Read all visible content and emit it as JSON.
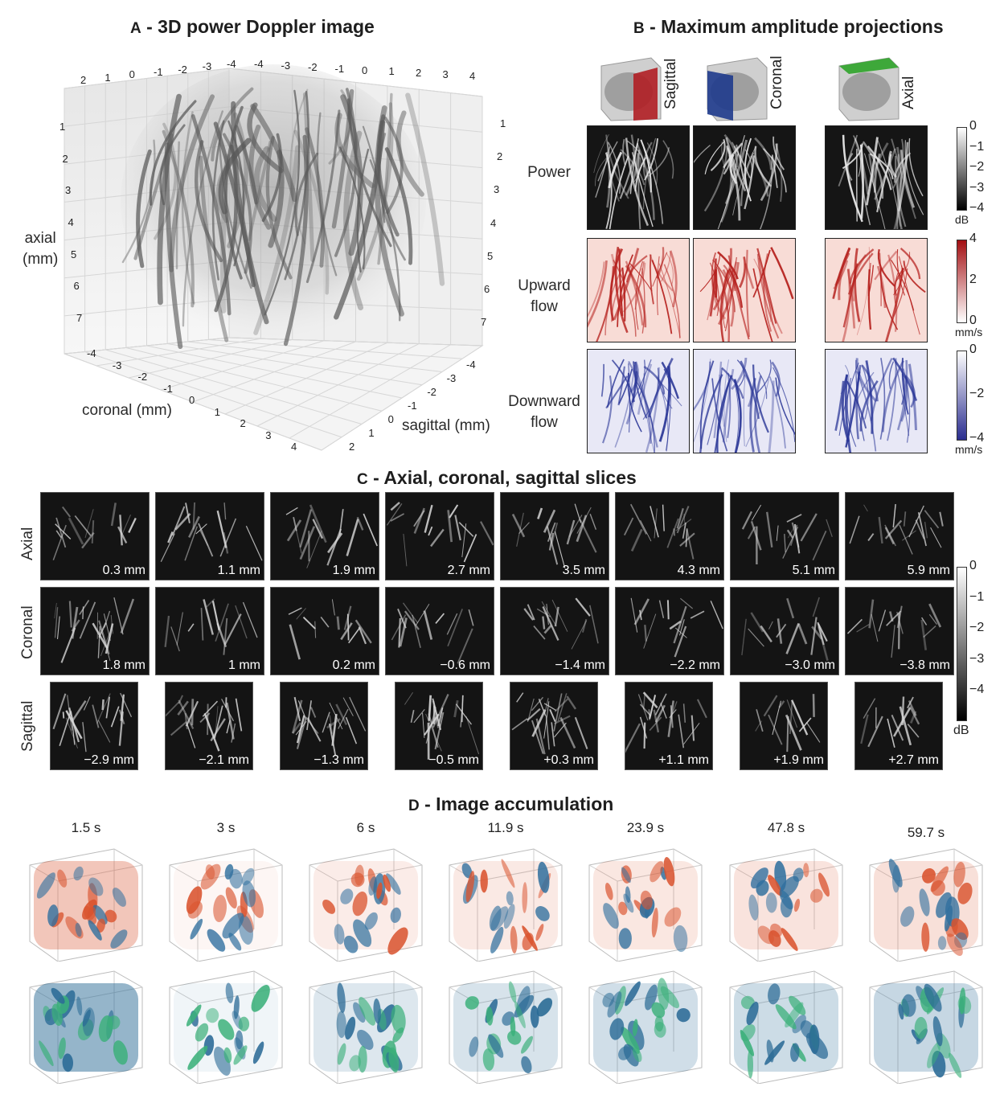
{
  "panels": {
    "a": {
      "letter": "A",
      "title": " - 3D power Doppler image"
    },
    "b": {
      "letter": "B",
      "title": " - Maximum amplitude projections"
    },
    "c": {
      "letter": "C",
      "title": " - Axial, coronal, sagittal slices"
    },
    "d": {
      "letter": "D",
      "title": " - Image accumulation"
    }
  },
  "panel_a": {
    "axial_label_line1": "axial",
    "axial_label_line2": "(mm)",
    "coronal_label": "coronal (mm)",
    "sagittal_label": "sagittal (mm)",
    "top_left_ticks": [
      "2",
      "1",
      "0",
      "-1",
      "-2",
      "-3",
      "-4"
    ],
    "top_right_ticks": [
      "-4",
      "-3",
      "-2",
      "-1",
      "0",
      "1",
      "2",
      "3",
      "4"
    ],
    "left_axial_ticks": [
      "1",
      "2",
      "3",
      "4",
      "5",
      "6",
      "7"
    ],
    "right_axial_ticks": [
      "1",
      "2",
      "3",
      "4",
      "5",
      "6",
      "7"
    ],
    "coronal_ticks": [
      "-4",
      "-3",
      "-2",
      "-1",
      "0",
      "1",
      "2",
      "3",
      "4"
    ],
    "sagittal_ticks": [
      "-4",
      "-3",
      "-2",
      "-1",
      "0",
      "1",
      "2"
    ]
  },
  "panel_b": {
    "views": [
      "Sagittal",
      "Coronal",
      "Axial"
    ],
    "view_colors": [
      "#b01e24",
      "#1e3a8c",
      "#3ea83a"
    ],
    "rows": [
      {
        "label_line1": "Power",
        "label_line2": ""
      },
      {
        "label_line1": "Upward",
        "label_line2": "flow"
      },
      {
        "label_line1": "Downward",
        "label_line2": "flow"
      }
    ],
    "colorbars": [
      {
        "ticks": [
          "0",
          "−1",
          "−2",
          "−3",
          "−4"
        ],
        "unit": "dB",
        "colors": [
          "#ffffff",
          "#000000"
        ]
      },
      {
        "ticks": [
          "4",
          "2",
          "0"
        ],
        "unit": "mm/s",
        "colors": [
          "#a30f12",
          "#ffffff"
        ]
      },
      {
        "ticks": [
          "0",
          "−2",
          "−4"
        ],
        "unit": "mm/s",
        "colors": [
          "#ffffff",
          "#2a2d8f"
        ]
      }
    ]
  },
  "panel_c": {
    "row_labels": [
      "Axial",
      "Coronal",
      "Sagittal"
    ],
    "axial_slices": [
      "0.3 mm",
      "1.1 mm",
      "1.9 mm",
      "2.7 mm",
      "3.5 mm",
      "4.3 mm",
      "5.1 mm",
      "5.9 mm"
    ],
    "coronal_slices": [
      "1.8 mm",
      "1 mm",
      "0.2 mm",
      "−0.6 mm",
      "−1.4 mm",
      "−2.2 mm",
      "−3.0 mm",
      "−3.8 mm"
    ],
    "sagittal_slices": [
      "−2.9 mm",
      "−2.1 mm",
      "−1.3 mm",
      "−0.5 mm",
      "+0.3 mm",
      "+1.1 mm",
      "+1.9 mm",
      "+2.7 mm"
    ],
    "colorbar_ticks": [
      "0",
      "−1",
      "−2",
      "−3",
      "−4"
    ],
    "colorbar_unit": "dB"
  },
  "panel_d": {
    "times": [
      "1.5 s",
      "3 s",
      "6 s",
      "11.9 s",
      "23.9 s",
      "47.8 s",
      "59.7 s"
    ],
    "top_colors": [
      "#d9532e",
      "#2f6f9e"
    ],
    "bottom_colors": [
      "#2b6b96",
      "#3bb07a"
    ]
  }
}
